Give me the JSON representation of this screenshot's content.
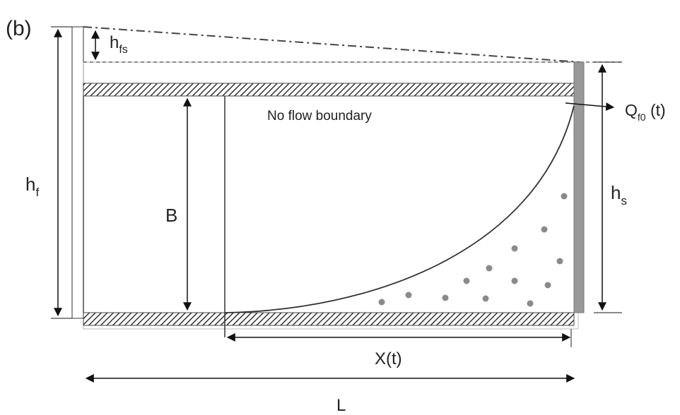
{
  "panel_label": "(b)",
  "labels": {
    "h_fs": {
      "main": "h",
      "sub": "fs"
    },
    "h_f": {
      "main": "h",
      "sub": "f"
    },
    "B": "B",
    "h_s": {
      "main": "h",
      "sub": "s"
    },
    "no_flow": "No flow boundary",
    "Q": {
      "main": "Q",
      "sub": "f0",
      "suffix": " (t)"
    },
    "X": "X(t)",
    "L": "L"
  }
}
